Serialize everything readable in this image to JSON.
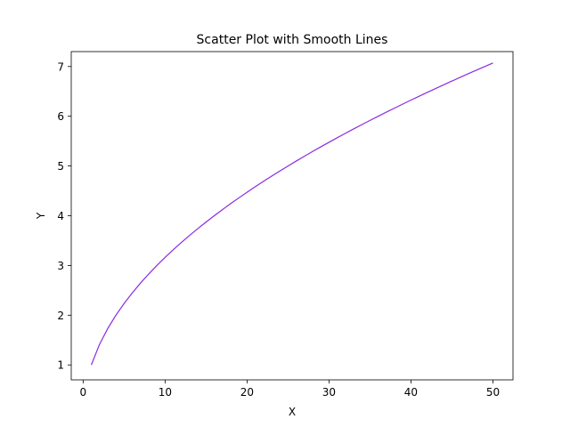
{
  "chart_data": {
    "type": "line",
    "title": "Scatter Plot with Smooth Lines",
    "xlabel": "X",
    "ylabel": "Y",
    "xlim": [
      -1.45,
      52.45
    ],
    "ylim": [
      0.7,
      7.3
    ],
    "grid": false,
    "x_ticks": [
      0,
      10,
      20,
      30,
      40,
      50
    ],
    "y_ticks": [
      1,
      2,
      3,
      4,
      5,
      6,
      7
    ],
    "series": [
      {
        "color": "#8a2be2",
        "x": [
          1,
          2,
          3,
          4,
          5,
          6,
          7,
          8,
          9,
          10,
          11,
          12,
          13,
          14,
          15,
          16,
          17,
          18,
          19,
          20,
          21,
          22,
          23,
          24,
          25,
          26,
          27,
          28,
          29,
          30,
          31,
          32,
          33,
          34,
          35,
          36,
          37,
          38,
          39,
          40,
          41,
          42,
          43,
          44,
          45,
          46,
          47,
          48,
          49,
          50
        ],
        "y": [
          1.0,
          1.414,
          1.732,
          2.0,
          2.236,
          2.449,
          2.646,
          2.828,
          3.0,
          3.162,
          3.317,
          3.464,
          3.606,
          3.742,
          3.873,
          4.0,
          4.123,
          4.243,
          4.359,
          4.472,
          4.583,
          4.69,
          4.796,
          4.899,
          5.0,
          5.099,
          5.196,
          5.292,
          5.385,
          5.477,
          5.568,
          5.657,
          5.745,
          5.831,
          5.916,
          6.0,
          6.083,
          6.164,
          6.245,
          6.325,
          6.403,
          6.481,
          6.557,
          6.633,
          6.708,
          6.782,
          6.856,
          6.928,
          7.0,
          7.071
        ]
      }
    ]
  }
}
